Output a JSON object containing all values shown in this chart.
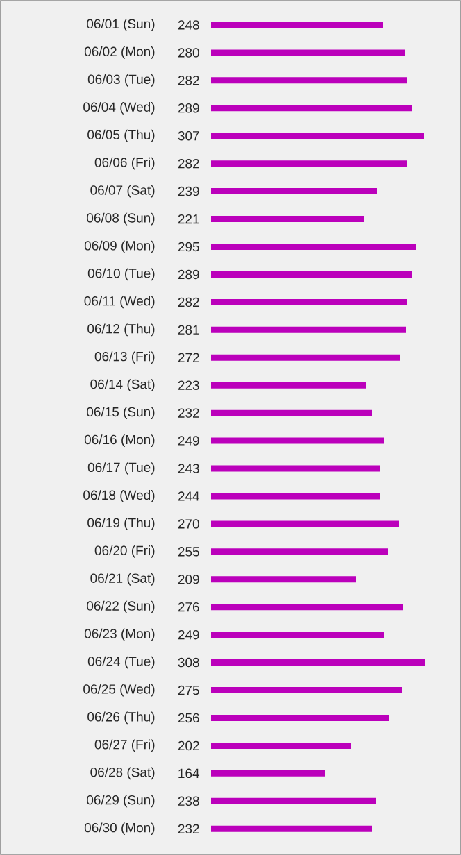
{
  "chart_data": {
    "type": "bar",
    "orientation": "horizontal",
    "data_labels": true,
    "color": "#bb00bb",
    "categories": [
      "06/01 (Sun)",
      "06/02 (Mon)",
      "06/03 (Tue)",
      "06/04 (Wed)",
      "06/05 (Thu)",
      "06/06 (Fri)",
      "06/07 (Sat)",
      "06/08 (Sun)",
      "06/09 (Mon)",
      "06/10 (Tue)",
      "06/11 (Wed)",
      "06/12 (Thu)",
      "06/13 (Fri)",
      "06/14 (Sat)",
      "06/15 (Sun)",
      "06/16 (Mon)",
      "06/17 (Tue)",
      "06/18 (Wed)",
      "06/19 (Thu)",
      "06/20 (Fri)",
      "06/21 (Sat)",
      "06/22 (Sun)",
      "06/23 (Mon)",
      "06/24 (Tue)",
      "06/25 (Wed)",
      "06/26 (Thu)",
      "06/27 (Fri)",
      "06/28 (Sat)",
      "06/29 (Sun)",
      "06/30 (Mon)"
    ],
    "values": [
      248,
      280,
      282,
      289,
      307,
      282,
      239,
      221,
      295,
      289,
      282,
      281,
      272,
      223,
      232,
      249,
      243,
      244,
      270,
      255,
      209,
      276,
      249,
      308,
      275,
      256,
      202,
      164,
      238,
      232
    ]
  }
}
